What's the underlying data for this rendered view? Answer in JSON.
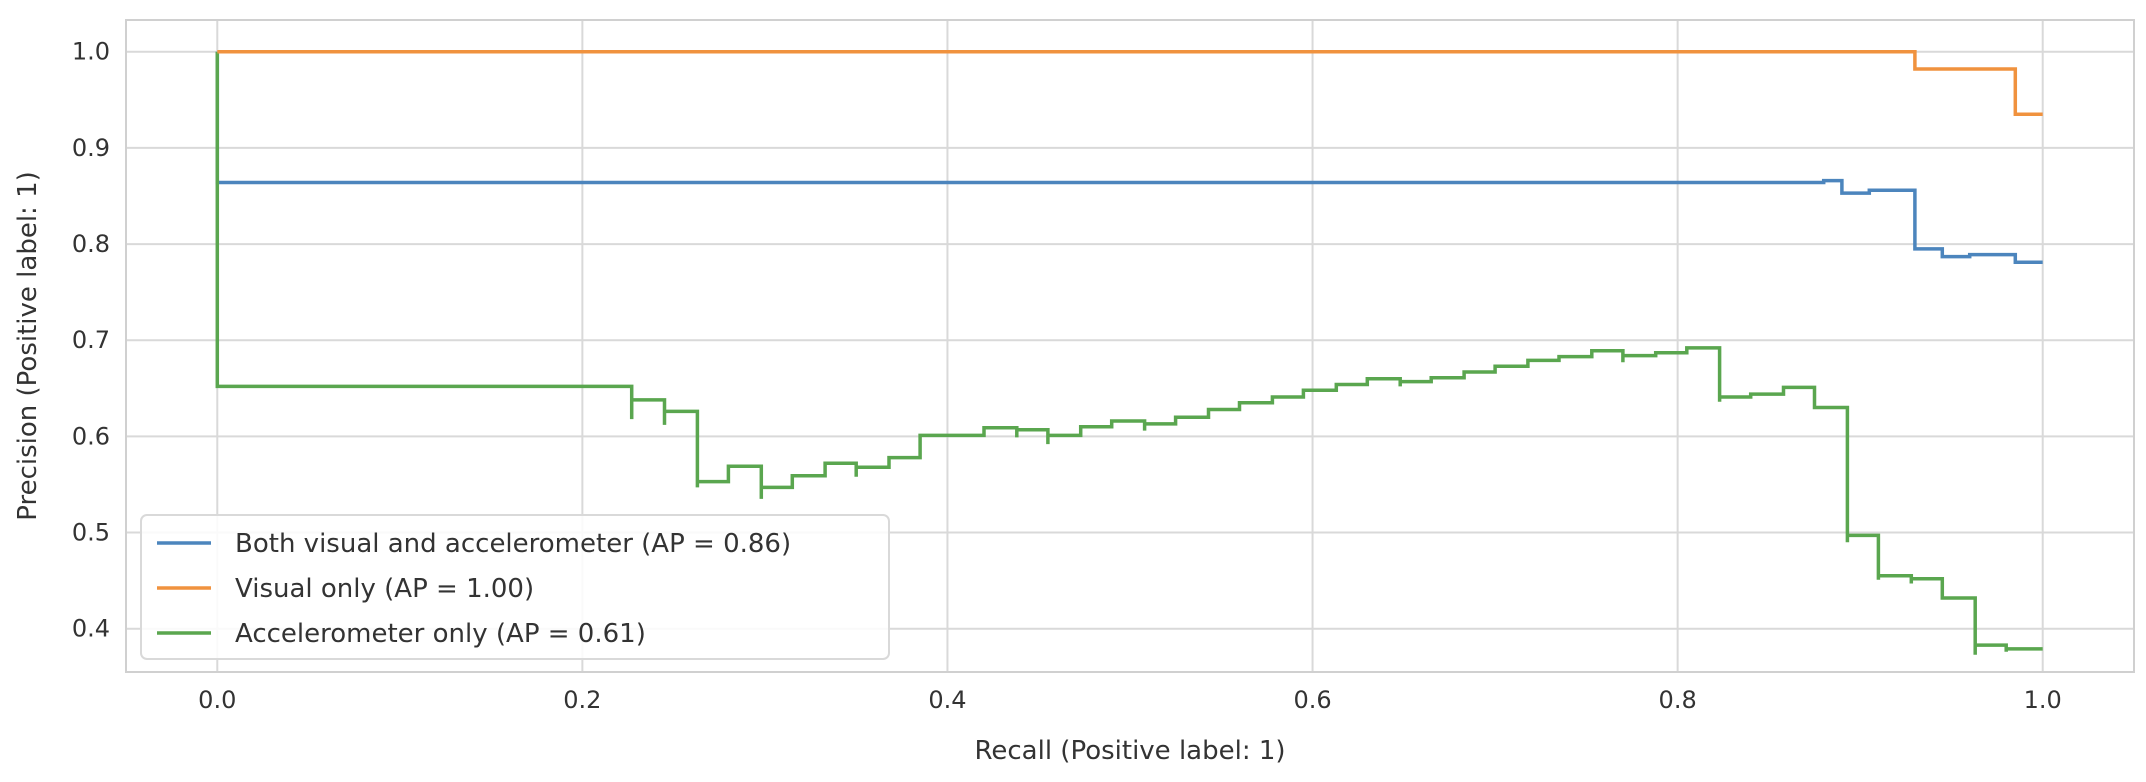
{
  "chart_data": {
    "type": "line",
    "title": "",
    "xlabel": "Recall (Positive label: 1)",
    "ylabel": "Precision (Positive label: 1)",
    "xlim": [
      -0.05,
      1.05
    ],
    "ylim": [
      0.355,
      1.033
    ],
    "xticks": [
      0.0,
      0.2,
      0.4,
      0.6,
      0.8,
      1.0
    ],
    "xtick_labels": [
      "0.0",
      "0.2",
      "0.4",
      "0.6",
      "0.8",
      "1.0"
    ],
    "yticks": [
      0.4,
      0.5,
      0.6,
      0.7,
      0.8,
      0.9,
      1.0
    ],
    "ytick_labels": [
      "0.4",
      "0.5",
      "0.6",
      "0.7",
      "0.8",
      "0.9",
      "1.0"
    ],
    "grid": true,
    "legend_position": "lower-left",
    "series": [
      {
        "name": "Both visual and accelerometer (AP = 0.86)",
        "color": "#4c85bd",
        "drawstyle": "steps-post",
        "points": [
          [
            0.0,
            1.0
          ],
          [
            0.0,
            0.864
          ],
          [
            0.88,
            0.864
          ],
          [
            0.88,
            0.866
          ],
          [
            0.89,
            0.866
          ],
          [
            0.89,
            0.853
          ],
          [
            0.905,
            0.853
          ],
          [
            0.905,
            0.856
          ],
          [
            0.93,
            0.856
          ],
          [
            0.93,
            0.795
          ],
          [
            0.945,
            0.795
          ],
          [
            0.945,
            0.787
          ],
          [
            0.96,
            0.787
          ],
          [
            0.96,
            0.789
          ],
          [
            0.985,
            0.789
          ],
          [
            0.985,
            0.781
          ],
          [
            1.0,
            0.781
          ]
        ]
      },
      {
        "name": "Visual only (AP = 1.00)",
        "color": "#f0923e",
        "drawstyle": "steps-post",
        "points": [
          [
            0.0,
            1.0
          ],
          [
            0.93,
            1.0
          ],
          [
            0.93,
            0.982
          ],
          [
            0.985,
            0.982
          ],
          [
            0.985,
            0.935
          ],
          [
            1.0,
            0.935
          ]
        ]
      },
      {
        "name": "Accelerometer only (AP = 0.61)",
        "color": "#5aa64f",
        "drawstyle": "steps-post",
        "points": [
          [
            0.0,
            1.0
          ],
          [
            0.0,
            0.652
          ],
          [
            0.227,
            0.652
          ],
          [
            0.227,
            0.618
          ],
          [
            0.227,
            0.638
          ],
          [
            0.245,
            0.638
          ],
          [
            0.245,
            0.612
          ],
          [
            0.245,
            0.626
          ],
          [
            0.263,
            0.626
          ],
          [
            0.263,
            0.547
          ],
          [
            0.263,
            0.553
          ],
          [
            0.28,
            0.553
          ],
          [
            0.28,
            0.569
          ],
          [
            0.298,
            0.569
          ],
          [
            0.298,
            0.535
          ],
          [
            0.298,
            0.547
          ],
          [
            0.315,
            0.547
          ],
          [
            0.315,
            0.559
          ],
          [
            0.333,
            0.559
          ],
          [
            0.333,
            0.572
          ],
          [
            0.35,
            0.572
          ],
          [
            0.35,
            0.558
          ],
          [
            0.35,
            0.568
          ],
          [
            0.368,
            0.568
          ],
          [
            0.368,
            0.578
          ],
          [
            0.385,
            0.578
          ],
          [
            0.385,
            0.601
          ],
          [
            0.42,
            0.601
          ],
          [
            0.42,
            0.609
          ],
          [
            0.438,
            0.609
          ],
          [
            0.438,
            0.599
          ],
          [
            0.438,
            0.607
          ],
          [
            0.455,
            0.607
          ],
          [
            0.455,
            0.592
          ],
          [
            0.455,
            0.601
          ],
          [
            0.473,
            0.601
          ],
          [
            0.473,
            0.61
          ],
          [
            0.49,
            0.61
          ],
          [
            0.49,
            0.616
          ],
          [
            0.508,
            0.616
          ],
          [
            0.508,
            0.606
          ],
          [
            0.508,
            0.613
          ],
          [
            0.525,
            0.613
          ],
          [
            0.525,
            0.62
          ],
          [
            0.543,
            0.62
          ],
          [
            0.543,
            0.628
          ],
          [
            0.56,
            0.628
          ],
          [
            0.56,
            0.635
          ],
          [
            0.578,
            0.635
          ],
          [
            0.578,
            0.641
          ],
          [
            0.595,
            0.641
          ],
          [
            0.595,
            0.648
          ],
          [
            0.613,
            0.648
          ],
          [
            0.613,
            0.654
          ],
          [
            0.63,
            0.654
          ],
          [
            0.63,
            0.66
          ],
          [
            0.648,
            0.66
          ],
          [
            0.648,
            0.652
          ],
          [
            0.648,
            0.657
          ],
          [
            0.665,
            0.657
          ],
          [
            0.665,
            0.661
          ],
          [
            0.683,
            0.661
          ],
          [
            0.683,
            0.667
          ],
          [
            0.7,
            0.667
          ],
          [
            0.7,
            0.673
          ],
          [
            0.718,
            0.673
          ],
          [
            0.718,
            0.679
          ],
          [
            0.735,
            0.679
          ],
          [
            0.735,
            0.683
          ],
          [
            0.753,
            0.683
          ],
          [
            0.753,
            0.689
          ],
          [
            0.77,
            0.689
          ],
          [
            0.77,
            0.677
          ],
          [
            0.77,
            0.684
          ],
          [
            0.788,
            0.684
          ],
          [
            0.788,
            0.687
          ],
          [
            0.805,
            0.687
          ],
          [
            0.805,
            0.692
          ],
          [
            0.823,
            0.692
          ],
          [
            0.823,
            0.636
          ],
          [
            0.823,
            0.641
          ],
          [
            0.84,
            0.641
          ],
          [
            0.84,
            0.644
          ],
          [
            0.858,
            0.644
          ],
          [
            0.858,
            0.651
          ],
          [
            0.875,
            0.651
          ],
          [
            0.875,
            0.63
          ],
          [
            0.893,
            0.63
          ],
          [
            0.893,
            0.49
          ],
          [
            0.893,
            0.497
          ],
          [
            0.91,
            0.497
          ],
          [
            0.91,
            0.451
          ],
          [
            0.91,
            0.455
          ],
          [
            0.928,
            0.455
          ],
          [
            0.928,
            0.447
          ],
          [
            0.928,
            0.452
          ],
          [
            0.945,
            0.452
          ],
          [
            0.945,
            0.432
          ],
          [
            0.963,
            0.432
          ],
          [
            0.963,
            0.373
          ],
          [
            0.963,
            0.383
          ],
          [
            0.98,
            0.383
          ],
          [
            0.98,
            0.376
          ],
          [
            0.98,
            0.379
          ],
          [
            1.0,
            0.379
          ]
        ]
      }
    ]
  }
}
